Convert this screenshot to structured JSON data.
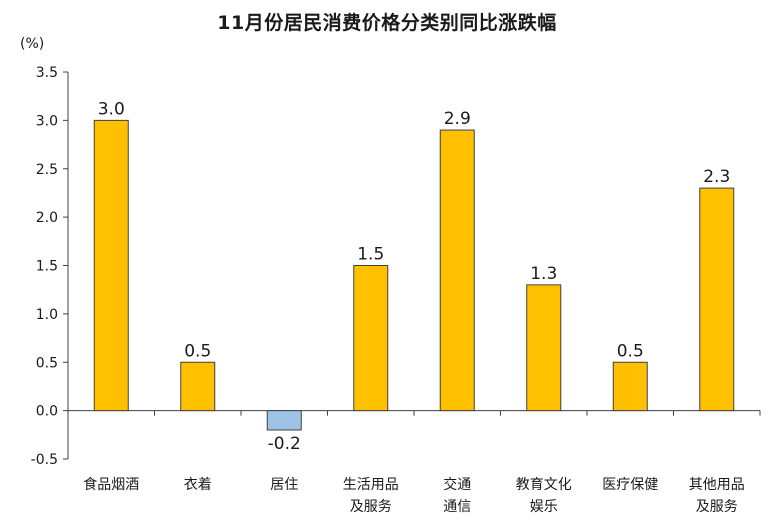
{
  "chart_data": {
    "type": "bar",
    "title": "11月份居民消费价格分类别同比涨跌幅",
    "unit": "(%)",
    "categories": [
      [
        "食品烟酒"
      ],
      [
        "衣着"
      ],
      [
        "居住"
      ],
      [
        "生活用品",
        "及服务"
      ],
      [
        "交通",
        "通信"
      ],
      [
        "教育文化",
        "娱乐"
      ],
      [
        "医疗保健"
      ],
      [
        "其他用品",
        "及服务"
      ]
    ],
    "values": [
      3.0,
      0.5,
      -0.2,
      1.5,
      2.9,
      1.3,
      0.5,
      2.3
    ],
    "value_labels": [
      "3.0",
      "0.5",
      "-0.2",
      "1.5",
      "2.9",
      "1.3",
      "0.5",
      "2.3"
    ],
    "ylim": [
      -0.5,
      3.5
    ],
    "yticks": [
      -0.5,
      0.0,
      0.5,
      1.0,
      1.5,
      2.0,
      2.5,
      3.0,
      3.5
    ],
    "ytick_labels": [
      "-0.5",
      "0.0",
      "0.5",
      "1.0",
      "1.5",
      "2.0",
      "2.5",
      "3.0",
      "3.5"
    ],
    "grid": false,
    "colors": {
      "positive": "#FFC000",
      "negative": "#9DC3E6",
      "bar_border": "#404040",
      "axis": "#404040"
    }
  }
}
